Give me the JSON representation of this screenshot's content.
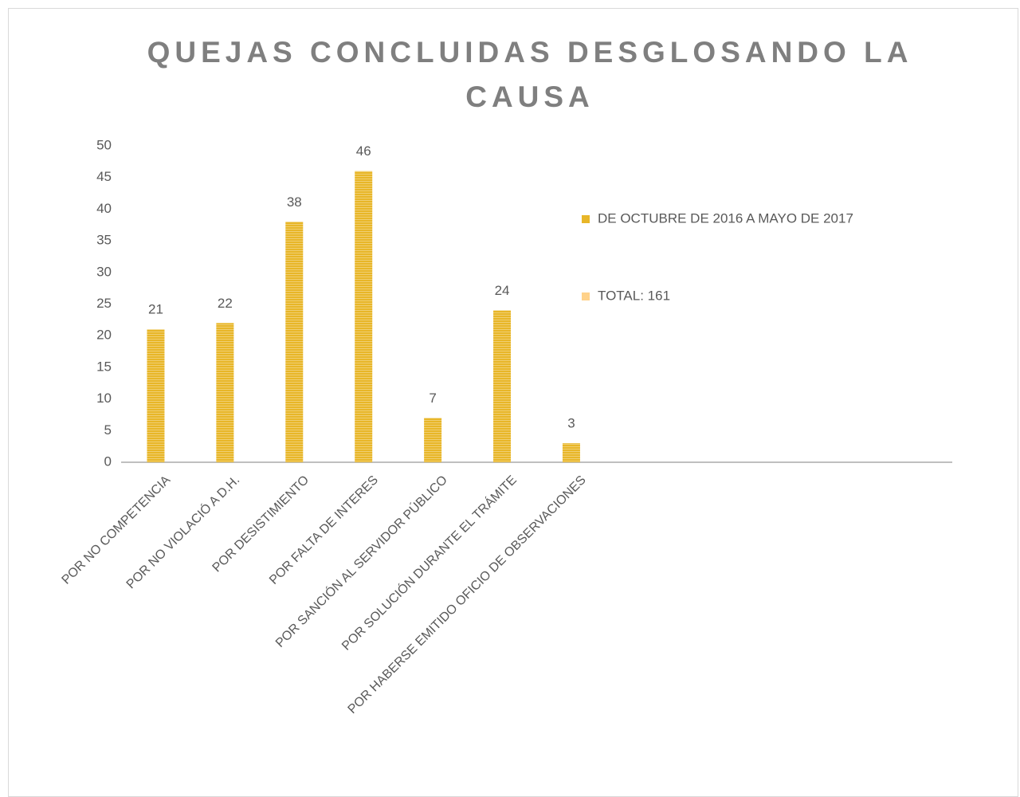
{
  "chart_data": {
    "type": "bar",
    "title": "QUEJAS CONCLUIDAS DESGLOSANDO LA CAUSA",
    "categories": [
      "POR NO COMPETENCIA",
      "POR NO VIOLACIÓ A D.H.",
      "POR DESISTIMIENTO",
      "POR FALTA DE INTERES",
      "POR SANCIÓN AL SERVIDOR PÚBLICO",
      "POR SOLUCIÓN DURANTE EL TRÁMITE",
      "POR HABERSE EMITIDO OFICIO DE OBSERVACIONES",
      null,
      null,
      null,
      null,
      null
    ],
    "series": [
      {
        "name": "DE OCTUBRE DE 2016 A MAYO DE 2017",
        "color": "#E8B628",
        "values": [
          21,
          22,
          38,
          46,
          7,
          24,
          3,
          null,
          null,
          null,
          null,
          null
        ]
      },
      {
        "name": "TOTAL:  161",
        "color": "#FFD28A",
        "values": [
          null,
          null,
          null,
          null,
          null,
          null,
          null,
          null,
          null,
          null,
          null,
          null
        ]
      }
    ],
    "ylim": [
      0,
      50
    ],
    "yticks": [
      0,
      5,
      10,
      15,
      20,
      25,
      30,
      35,
      40,
      45,
      50
    ],
    "grid": false
  }
}
